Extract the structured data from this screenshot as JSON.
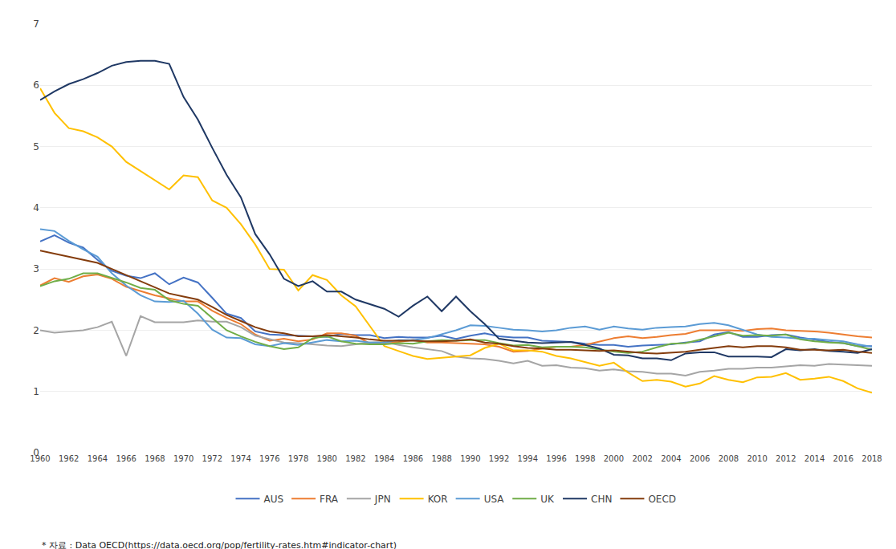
{
  "chart_data": {
    "type": "line",
    "x": [
      1960,
      1961,
      1962,
      1963,
      1964,
      1965,
      1966,
      1967,
      1968,
      1969,
      1970,
      1971,
      1972,
      1973,
      1974,
      1975,
      1976,
      1977,
      1978,
      1979,
      1980,
      1981,
      1982,
      1983,
      1984,
      1985,
      1986,
      1987,
      1988,
      1989,
      1990,
      1991,
      1992,
      1993,
      1994,
      1995,
      1996,
      1997,
      1998,
      1999,
      2000,
      2001,
      2002,
      2003,
      2004,
      2005,
      2006,
      2007,
      2008,
      2009,
      2010,
      2011,
      2012,
      2013,
      2014,
      2015,
      2016,
      2017,
      2018
    ],
    "series": [
      {
        "name": "AUS",
        "color": "#4472C4",
        "values": [
          3.45,
          3.55,
          3.43,
          3.35,
          3.15,
          2.97,
          2.89,
          2.85,
          2.93,
          2.75,
          2.86,
          2.78,
          2.53,
          2.27,
          2.2,
          1.98,
          1.93,
          1.92,
          1.91,
          1.9,
          1.89,
          1.94,
          1.92,
          1.92,
          1.87,
          1.89,
          1.88,
          1.88,
          1.91,
          1.86,
          1.91,
          1.95,
          1.9,
          1.88,
          1.88,
          1.83,
          1.82,
          1.81,
          1.78,
          1.76,
          1.76,
          1.73,
          1.75,
          1.76,
          1.77,
          1.8,
          1.82,
          1.93,
          1.97,
          1.89,
          1.89,
          1.92,
          1.93,
          1.88,
          1.84,
          1.81,
          1.79,
          1.74,
          1.74
        ]
      },
      {
        "name": "FRA",
        "color": "#ED7D31",
        "values": [
          2.73,
          2.85,
          2.79,
          2.88,
          2.91,
          2.84,
          2.71,
          2.64,
          2.57,
          2.52,
          2.47,
          2.47,
          2.32,
          2.2,
          2.1,
          1.93,
          1.83,
          1.86,
          1.82,
          1.85,
          1.95,
          1.95,
          1.91,
          1.78,
          1.8,
          1.81,
          1.84,
          1.8,
          1.8,
          1.79,
          1.78,
          1.77,
          1.73,
          1.65,
          1.66,
          1.7,
          1.73,
          1.73,
          1.76,
          1.81,
          1.87,
          1.9,
          1.87,
          1.89,
          1.92,
          1.94,
          2.0,
          2.0,
          2.0,
          1.99,
          2.02,
          2.03,
          2.0,
          1.99,
          1.98,
          1.96,
          1.93,
          1.9,
          1.88
        ]
      },
      {
        "name": "JPN",
        "color": "#A5A5A5",
        "values": [
          2.0,
          1.96,
          1.98,
          2.0,
          2.05,
          2.14,
          1.58,
          2.23,
          2.13,
          2.13,
          2.13,
          2.16,
          2.14,
          2.14,
          2.05,
          1.91,
          1.85,
          1.8,
          1.79,
          1.77,
          1.75,
          1.74,
          1.77,
          1.8,
          1.81,
          1.76,
          1.72,
          1.69,
          1.66,
          1.57,
          1.54,
          1.53,
          1.5,
          1.46,
          1.5,
          1.42,
          1.43,
          1.39,
          1.38,
          1.34,
          1.36,
          1.33,
          1.32,
          1.29,
          1.29,
          1.26,
          1.32,
          1.34,
          1.37,
          1.37,
          1.39,
          1.39,
          1.41,
          1.43,
          1.42,
          1.45,
          1.44,
          1.43,
          1.42
        ]
      },
      {
        "name": "KOR",
        "color": "#FFC000",
        "values": [
          5.95,
          5.55,
          5.3,
          5.25,
          5.15,
          5.0,
          4.75,
          4.6,
          4.45,
          4.3,
          4.53,
          4.5,
          4.12,
          4.0,
          3.73,
          3.4,
          3.0,
          2.99,
          2.65,
          2.9,
          2.82,
          2.57,
          2.39,
          2.06,
          1.74,
          1.66,
          1.58,
          1.53,
          1.55,
          1.57,
          1.59,
          1.71,
          1.78,
          1.67,
          1.67,
          1.65,
          1.58,
          1.54,
          1.48,
          1.42,
          1.47,
          1.31,
          1.17,
          1.19,
          1.16,
          1.08,
          1.13,
          1.25,
          1.19,
          1.15,
          1.23,
          1.24,
          1.3,
          1.19,
          1.21,
          1.24,
          1.17,
          1.05,
          0.98
        ]
      },
      {
        "name": "USA",
        "color": "#5B9BD5",
        "values": [
          3.65,
          3.62,
          3.46,
          3.32,
          3.2,
          2.93,
          2.73,
          2.57,
          2.47,
          2.46,
          2.48,
          2.27,
          2.01,
          1.88,
          1.87,
          1.77,
          1.74,
          1.79,
          1.76,
          1.8,
          1.84,
          1.82,
          1.83,
          1.8,
          1.8,
          1.84,
          1.84,
          1.87,
          1.93,
          2.0,
          2.08,
          2.07,
          2.04,
          2.01,
          2.0,
          1.98,
          2.0,
          2.04,
          2.06,
          2.01,
          2.06,
          2.03,
          2.01,
          2.04,
          2.05,
          2.06,
          2.1,
          2.12,
          2.08,
          2.01,
          1.93,
          1.89,
          1.88,
          1.86,
          1.86,
          1.84,
          1.82,
          1.77,
          1.73
        ]
      },
      {
        "name": "UK",
        "color": "#70AD47",
        "values": [
          2.72,
          2.8,
          2.84,
          2.93,
          2.93,
          2.86,
          2.78,
          2.69,
          2.66,
          2.49,
          2.43,
          2.4,
          2.2,
          2.0,
          1.9,
          1.81,
          1.74,
          1.69,
          1.72,
          1.87,
          1.9,
          1.82,
          1.78,
          1.77,
          1.77,
          1.79,
          1.78,
          1.82,
          1.84,
          1.83,
          1.84,
          1.84,
          1.79,
          1.75,
          1.76,
          1.72,
          1.73,
          1.73,
          1.72,
          1.68,
          1.65,
          1.63,
          1.65,
          1.72,
          1.78,
          1.79,
          1.84,
          1.9,
          1.96,
          1.91,
          1.92,
          1.91,
          1.93,
          1.85,
          1.82,
          1.8,
          1.79,
          1.74,
          1.68
        ]
      },
      {
        "name": "CHN",
        "color": "#1F3864",
        "values": [
          5.76,
          5.9,
          6.02,
          6.1,
          6.2,
          6.32,
          6.38,
          6.4,
          6.4,
          6.35,
          5.81,
          5.44,
          4.98,
          4.54,
          4.17,
          3.57,
          3.24,
          2.84,
          2.72,
          2.8,
          2.63,
          2.63,
          2.5,
          2.42,
          2.35,
          2.22,
          2.4,
          2.55,
          2.31,
          2.55,
          2.31,
          2.1,
          1.86,
          1.83,
          1.8,
          1.79,
          1.8,
          1.81,
          1.76,
          1.7,
          1.6,
          1.59,
          1.54,
          1.54,
          1.51,
          1.62,
          1.64,
          1.64,
          1.57,
          1.57,
          1.57,
          1.56,
          1.69,
          1.67,
          1.69,
          1.66,
          1.65,
          1.63,
          1.69
        ]
      },
      {
        "name": "OECD",
        "color": "#843C0C",
        "values": [
          3.3,
          3.25,
          3.2,
          3.15,
          3.1,
          3.0,
          2.9,
          2.8,
          2.7,
          2.6,
          2.55,
          2.5,
          2.38,
          2.25,
          2.15,
          2.05,
          1.98,
          1.95,
          1.9,
          1.9,
          1.92,
          1.9,
          1.88,
          1.85,
          1.83,
          1.83,
          1.83,
          1.82,
          1.82,
          1.83,
          1.85,
          1.8,
          1.78,
          1.74,
          1.71,
          1.7,
          1.68,
          1.68,
          1.67,
          1.66,
          1.67,
          1.65,
          1.63,
          1.62,
          1.63,
          1.65,
          1.68,
          1.71,
          1.74,
          1.72,
          1.74,
          1.74,
          1.72,
          1.68,
          1.68,
          1.67,
          1.68,
          1.65,
          1.63
        ]
      }
    ],
    "xlim": [
      1960,
      2018
    ],
    "xticks": [
      1960,
      1962,
      1964,
      1966,
      1968,
      1970,
      1972,
      1974,
      1976,
      1978,
      1980,
      1982,
      1984,
      1986,
      1988,
      1990,
      1992,
      1994,
      1996,
      1998,
      2000,
      2002,
      2004,
      2006,
      2008,
      2010,
      2012,
      2014,
      2016,
      2018
    ],
    "ylim": [
      0,
      7
    ],
    "yticks": [
      0,
      1,
      2,
      3,
      4,
      5,
      6,
      7
    ],
    "grid": "y",
    "legend": "bottom",
    "footnote": "* 자료 : Data OECD(https://data.oecd.org/pop/fertility-rates.htm#indicator-chart)"
  }
}
